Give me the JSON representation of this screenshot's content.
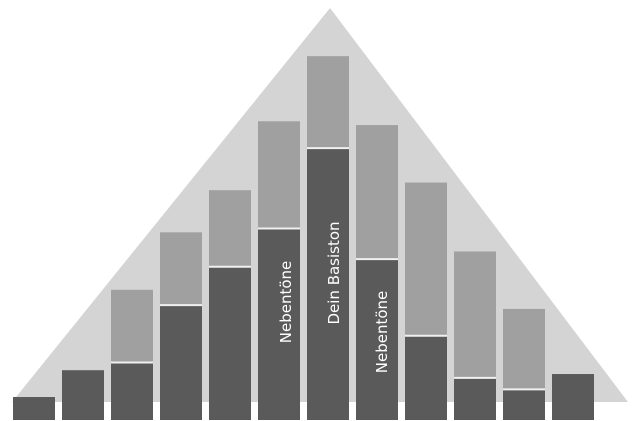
{
  "diagram": {
    "colors": {
      "background": "#ffffff",
      "triangle": "#d4d4d4",
      "bar_dark": "#5a5a5a",
      "bar_light": "#a0a0a0",
      "separator": "#f0f0f0"
    },
    "bars": [
      {
        "name": "bar-1",
        "dark_level": 0.06,
        "light_level": 0.0
      },
      {
        "name": "bar-2",
        "dark_level": 0.13,
        "light_level": 0.0
      },
      {
        "name": "bar-3",
        "dark_level": 0.15,
        "light_level": 0.34
      },
      {
        "name": "bar-4",
        "dark_level": 0.3,
        "light_level": 0.49
      },
      {
        "name": "bar-5",
        "dark_level": 0.4,
        "light_level": 0.6
      },
      {
        "name": "bar-6",
        "dark_level": 0.5,
        "light_level": 0.78
      },
      {
        "name": "bar-7",
        "dark_level": 0.71,
        "light_level": 0.95
      },
      {
        "name": "bar-8",
        "dark_level": 0.42,
        "light_level": 0.77
      },
      {
        "name": "bar-9",
        "dark_level": 0.22,
        "light_level": 0.62
      },
      {
        "name": "bar-10",
        "dark_level": 0.11,
        "light_level": 0.44
      },
      {
        "name": "bar-11",
        "dark_level": 0.08,
        "light_level": 0.29
      },
      {
        "name": "bar-12",
        "dark_level": 0.12,
        "light_level": 0.0
      }
    ],
    "labels": {
      "left": "Nebentöne",
      "center": "Dein Basiston",
      "right": "Nebentöne"
    }
  }
}
